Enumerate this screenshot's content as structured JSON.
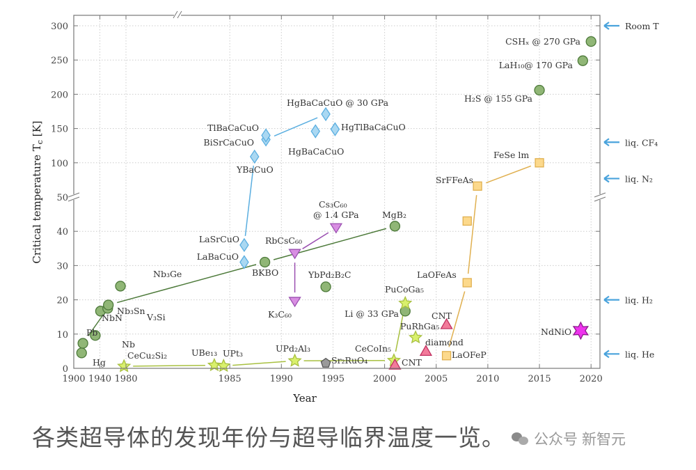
{
  "caption": "各类超导体的发现年份与超导临界温度一览。",
  "watermark": {
    "account_label": "公众号",
    "name": "新智元",
    "icon": "wechat-icon"
  },
  "chart_data": {
    "type": "scatter",
    "xlabel": "Year",
    "ylabel": "Critical temperature T",
    "ylabel_sub": "c",
    "ylabel_unit": " [K]",
    "x_ticks": [
      1900,
      1940,
      1980,
      1985,
      1990,
      1995,
      2000,
      2005,
      2010,
      2015,
      2020
    ],
    "y_ticks_lower": [
      0,
      10,
      20,
      30,
      40,
      50
    ],
    "y_ticks_upper": [
      100,
      150,
      200,
      250,
      300
    ],
    "x_axis_break": "between 1940 and 1980 scales (compressed before 1980)",
    "y_axis_break": 50,
    "grid": true,
    "reference_levels": [
      {
        "label": "Room T",
        "tc": 300
      },
      {
        "label": "liq. CF₄",
        "tc": 130
      },
      {
        "label": "liq. N₂",
        "tc": 77
      },
      {
        "label": "liq. H₂",
        "tc": 20
      },
      {
        "label": "liq. He",
        "tc": 4.2
      }
    ],
    "reference_arrow_color": "#4aa3dc",
    "series": [
      {
        "marker": "circle",
        "fill": "#90b676",
        "stroke": "#4d7a3a",
        "points": [
          {
            "label": "Hg",
            "year": 1912,
            "tc": 4.5
          },
          {
            "label": "Pb",
            "year": 1914,
            "tc": 7.3
          },
          {
            "label": "Nb",
            "year": 1933,
            "tc": 9.6
          },
          {
            "label": "NbN",
            "year": 1941,
            "tc": 16.7
          },
          {
            "label": "V₃Si",
            "year": 1952,
            "tc": 17.5
          },
          {
            "label": "Nb₃Sn",
            "year": 1953,
            "tc": 18.5
          },
          {
            "label": "Nb₃Ge",
            "year": 1971.5,
            "tc": 24
          },
          {
            "label": "BKBO",
            "year": 1988.4,
            "tc": 31
          },
          {
            "label": "YbPd₂B₂C",
            "year": 1994.3,
            "tc": 23.8
          },
          {
            "label": "MgB₂",
            "year": 2001,
            "tc": 41.5
          },
          {
            "label": "Li @ 33 GPa",
            "year": 2002,
            "tc": 16.7
          },
          {
            "label": "H₂S @ 155 GPa",
            "year": 2015,
            "tc": 206
          },
          {
            "label": "LaH₁₀@ 170 GPa",
            "year": 2019.2,
            "tc": 249
          },
          {
            "label": "CSHₓ @  270 GPa",
            "year": 2020,
            "tc": 277
          }
        ]
      },
      {
        "marker": "diamond",
        "fill": "#aad8f2",
        "stroke": "#5aaee0",
        "points": [
          {
            "label": "LaBaCuO",
            "year": 1986.4,
            "tc": 31
          },
          {
            "label": "LaSrCuO",
            "year": 1986.4,
            "tc": 36
          },
          {
            "label": "YBaCuO",
            "year": 1987.4,
            "tc": 109
          },
          {
            "label": "BiSrCaCuO",
            "year": 1988.5,
            "tc": 134
          },
          {
            "label": "TlBaCaCuO",
            "year": 1988.5,
            "tc": 140
          },
          {
            "label": "HgBaCaCuO",
            "year": 1993.3,
            "tc": 146
          },
          {
            "label": "HgBaCaCuO @ 30 GPa",
            "year": 1994.3,
            "tc": 171
          },
          {
            "label": "HgTlBaCaCuO",
            "year": 1995.2,
            "tc": 149
          }
        ]
      },
      {
        "marker": "triangle-down",
        "fill": "#d88ee2",
        "stroke": "#9a4fb0",
        "points": [
          {
            "label": "RbCsC₆₀",
            "year": 1991.3,
            "tc": 33.5
          },
          {
            "label": "K₃C₆₀",
            "year": 1991.3,
            "tc": 19.5
          },
          {
            "label": "Cs₃C₆₀",
            "label2": "@ 1.4 GPa",
            "year": 1995.3,
            "tc": 41
          }
        ]
      },
      {
        "marker": "star",
        "fill": "#d9f06c",
        "stroke": "#a8c040",
        "points": [
          {
            "label": "CeCu₂Si₂",
            "year": 1977,
            "tc": 0.6
          },
          {
            "label": "UBe₁₃",
            "year": 1983.5,
            "tc": 0.9
          },
          {
            "label": "UPt₃",
            "year": 1984.4,
            "tc": 0.7
          },
          {
            "label": "UPd₂Al₃",
            "year": 1991.3,
            "tc": 2.2
          },
          {
            "label": "CeCoIn₅",
            "year": 2000.9,
            "tc": 2.3
          },
          {
            "label": "PuCoGa₅",
            "year": 2002,
            "tc": 19
          },
          {
            "label": "PuRhGa₅",
            "year": 2003,
            "tc": 9
          }
        ]
      },
      {
        "marker": "pentagon",
        "fill": "#9a9a9a",
        "stroke": "#555555",
        "points": [
          {
            "label": "Sr₂RuO₄",
            "year": 1994.3,
            "tc": 1.5
          }
        ]
      },
      {
        "marker": "triangle-up",
        "fill": "#f27a9a",
        "stroke": "#c03060",
        "points": [
          {
            "label": "CNT",
            "year": 2001,
            "tc": 1
          },
          {
            "label": "diamond",
            "year": 2004,
            "tc": 5
          },
          {
            "label": "CNT",
            "year": 2006,
            "tc": 12.8
          }
        ]
      },
      {
        "marker": "square",
        "fill": "#fcd98c",
        "stroke": "#e0b050",
        "points": [
          {
            "label": "LaOFeP",
            "year": 2006,
            "tc": 3.7
          },
          {
            "label": "LaOFeAs",
            "year": 2008,
            "tc": 25
          },
          {
            "label": "",
            "year": 2008,
            "tc": 43
          },
          {
            "label": "SrFFeAs",
            "year": 2009,
            "tc": 66
          },
          {
            "label": "FeSe   lm",
            "year": 2015,
            "tc": 100
          }
        ]
      },
      {
        "marker": "hexagram",
        "fill": "#ee33ee",
        "stroke": "#8a1a8a",
        "points": [
          {
            "label": "NdNiO",
            "year": 2019,
            "tc": 11
          }
        ]
      }
    ]
  }
}
